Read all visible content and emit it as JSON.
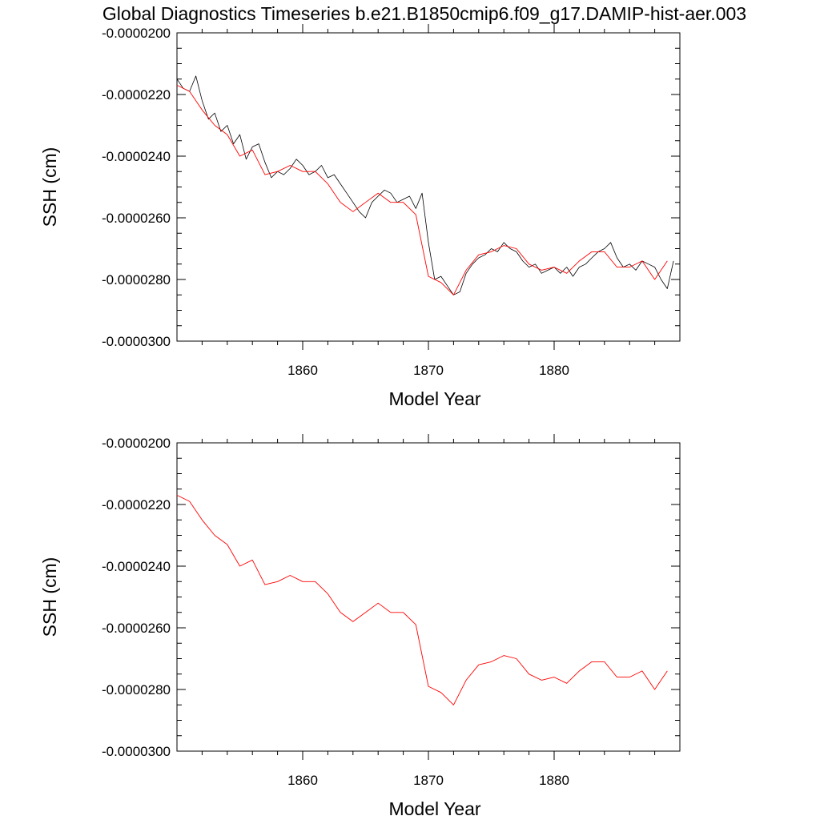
{
  "title": "Global Diagnostics Timeseries b.e21.B1850cmip6.f09_g17.DAMIP-hist-aer.003",
  "chart_data": [
    {
      "type": "line",
      "title": "Global Diagnostics Timeseries b.e21.B1850cmip6.f09_g17.DAMIP-hist-aer.003",
      "xlabel": "Model Year",
      "ylabel": "SSH (cm)",
      "xlim": [
        1850,
        1890
      ],
      "ylim": [
        -3e-05,
        -2e-05
      ],
      "xticks": [
        1860,
        1870,
        1880
      ],
      "xtick_labels": [
        "1860",
        "1870",
        "1880"
      ],
      "yticks": [
        -2e-05,
        -2.2e-05,
        -2.4e-05,
        -2.6e-05,
        -2.8e-05,
        -3e-05
      ],
      "ytick_labels": [
        "-0.0000200",
        "-0.0000220",
        "-0.0000240",
        "-0.0000260",
        "-0.0000280",
        "-0.0000300"
      ],
      "grid": false,
      "series": [
        {
          "color": "#000000",
          "style": "monthly",
          "x": [
            1850.0,
            1850.5,
            1851.0,
            1851.5,
            1852.0,
            1852.5,
            1853.0,
            1853.5,
            1854.0,
            1854.5,
            1855.0,
            1855.5,
            1856.0,
            1856.5,
            1857.0,
            1857.5,
            1858.0,
            1858.5,
            1859.0,
            1859.5,
            1860.0,
            1860.5,
            1861.0,
            1861.5,
            1862.0,
            1862.5,
            1863.0,
            1863.5,
            1864.0,
            1864.5,
            1865.0,
            1865.5,
            1866.0,
            1866.5,
            1867.0,
            1867.5,
            1868.0,
            1868.5,
            1869.0,
            1869.5,
            1870.0,
            1870.5,
            1871.0,
            1871.5,
            1872.0,
            1872.5,
            1873.0,
            1873.5,
            1874.0,
            1874.5,
            1875.0,
            1875.5,
            1876.0,
            1876.5,
            1877.0,
            1877.5,
            1878.0,
            1878.5,
            1879.0,
            1879.5,
            1880.0,
            1880.5,
            1881.0,
            1881.5,
            1882.0,
            1882.5,
            1883.0,
            1883.5,
            1884.0,
            1884.5,
            1885.0,
            1885.5,
            1886.0,
            1886.5,
            1887.0,
            1887.5,
            1888.0,
            1888.5,
            1889.0,
            1889.5
          ],
          "values": [
            -2.15e-05,
            -2.18e-05,
            -2.19e-05,
            -2.14e-05,
            -2.22e-05,
            -2.28e-05,
            -2.26e-05,
            -2.32e-05,
            -2.3e-05,
            -2.36e-05,
            -2.33e-05,
            -2.41e-05,
            -2.37e-05,
            -2.36e-05,
            -2.42e-05,
            -2.47e-05,
            -2.45e-05,
            -2.46e-05,
            -2.44e-05,
            -2.41e-05,
            -2.43e-05,
            -2.46e-05,
            -2.45e-05,
            -2.43e-05,
            -2.47e-05,
            -2.46e-05,
            -2.49e-05,
            -2.52e-05,
            -2.55e-05,
            -2.58e-05,
            -2.6e-05,
            -2.55e-05,
            -2.53e-05,
            -2.51e-05,
            -2.52e-05,
            -2.55e-05,
            -2.54e-05,
            -2.53e-05,
            -2.57e-05,
            -2.52e-05,
            -2.68e-05,
            -2.8e-05,
            -2.79e-05,
            -2.82e-05,
            -2.85e-05,
            -2.84e-05,
            -2.78e-05,
            -2.75e-05,
            -2.73e-05,
            -2.72e-05,
            -2.7e-05,
            -2.71e-05,
            -2.68e-05,
            -2.7e-05,
            -2.71e-05,
            -2.74e-05,
            -2.76e-05,
            -2.75e-05,
            -2.78e-05,
            -2.77e-05,
            -2.76e-05,
            -2.78e-05,
            -2.76e-05,
            -2.79e-05,
            -2.76e-05,
            -2.75e-05,
            -2.73e-05,
            -2.71e-05,
            -2.7e-05,
            -2.68e-05,
            -2.73e-05,
            -2.76e-05,
            -2.75e-05,
            -2.77e-05,
            -2.74e-05,
            -2.75e-05,
            -2.76e-05,
            -2.8e-05,
            -2.83e-05,
            -2.74e-05
          ]
        },
        {
          "color": "#ff0000",
          "style": "annual",
          "x": [
            1850.0,
            1851.0,
            1852.0,
            1853.0,
            1854.0,
            1855.0,
            1856.0,
            1857.0,
            1858.0,
            1859.0,
            1860.0,
            1861.0,
            1862.0,
            1863.0,
            1864.0,
            1865.0,
            1866.0,
            1867.0,
            1868.0,
            1869.0,
            1870.0,
            1871.0,
            1872.0,
            1873.0,
            1874.0,
            1875.0,
            1876.0,
            1877.0,
            1878.0,
            1879.0,
            1880.0,
            1881.0,
            1882.0,
            1883.0,
            1884.0,
            1885.0,
            1886.0,
            1887.0,
            1888.0,
            1889.0
          ],
          "values": [
            -2.17e-05,
            -2.19e-05,
            -2.25e-05,
            -2.3e-05,
            -2.33e-05,
            -2.4e-05,
            -2.38e-05,
            -2.46e-05,
            -2.45e-05,
            -2.43e-05,
            -2.45e-05,
            -2.45e-05,
            -2.49e-05,
            -2.55e-05,
            -2.58e-05,
            -2.55e-05,
            -2.52e-05,
            -2.55e-05,
            -2.55e-05,
            -2.59e-05,
            -2.79e-05,
            -2.81e-05,
            -2.85e-05,
            -2.77e-05,
            -2.72e-05,
            -2.71e-05,
            -2.69e-05,
            -2.7e-05,
            -2.75e-05,
            -2.77e-05,
            -2.76e-05,
            -2.78e-05,
            -2.74e-05,
            -2.71e-05,
            -2.71e-05,
            -2.76e-05,
            -2.76e-05,
            -2.74e-05,
            -2.8e-05,
            -2.74e-05
          ]
        }
      ]
    },
    {
      "type": "line",
      "xlabel": "Model Year",
      "ylabel": "SSH (cm)",
      "xlim": [
        1850,
        1890
      ],
      "ylim": [
        -3e-05,
        -2e-05
      ],
      "xticks": [
        1860,
        1870,
        1880
      ],
      "xtick_labels": [
        "1860",
        "1870",
        "1880"
      ],
      "yticks": [
        -2e-05,
        -2.2e-05,
        -2.4e-05,
        -2.6e-05,
        -2.8e-05,
        -3e-05
      ],
      "ytick_labels": [
        "-0.0000200",
        "-0.0000220",
        "-0.0000240",
        "-0.0000260",
        "-0.0000280",
        "-0.0000300"
      ],
      "grid": false,
      "series": [
        {
          "color": "#ff0000",
          "style": "annual",
          "x": [
            1850.0,
            1851.0,
            1852.0,
            1853.0,
            1854.0,
            1855.0,
            1856.0,
            1857.0,
            1858.0,
            1859.0,
            1860.0,
            1861.0,
            1862.0,
            1863.0,
            1864.0,
            1865.0,
            1866.0,
            1867.0,
            1868.0,
            1869.0,
            1870.0,
            1871.0,
            1872.0,
            1873.0,
            1874.0,
            1875.0,
            1876.0,
            1877.0,
            1878.0,
            1879.0,
            1880.0,
            1881.0,
            1882.0,
            1883.0,
            1884.0,
            1885.0,
            1886.0,
            1887.0,
            1888.0,
            1889.0
          ],
          "values": [
            -2.17e-05,
            -2.19e-05,
            -2.25e-05,
            -2.3e-05,
            -2.33e-05,
            -2.4e-05,
            -2.38e-05,
            -2.46e-05,
            -2.45e-05,
            -2.43e-05,
            -2.45e-05,
            -2.45e-05,
            -2.49e-05,
            -2.55e-05,
            -2.58e-05,
            -2.55e-05,
            -2.52e-05,
            -2.55e-05,
            -2.55e-05,
            -2.59e-05,
            -2.79e-05,
            -2.81e-05,
            -2.85e-05,
            -2.77e-05,
            -2.72e-05,
            -2.71e-05,
            -2.69e-05,
            -2.7e-05,
            -2.75e-05,
            -2.77e-05,
            -2.76e-05,
            -2.78e-05,
            -2.74e-05,
            -2.71e-05,
            -2.71e-05,
            -2.76e-05,
            -2.76e-05,
            -2.74e-05,
            -2.8e-05,
            -2.74e-05
          ]
        }
      ]
    }
  ]
}
